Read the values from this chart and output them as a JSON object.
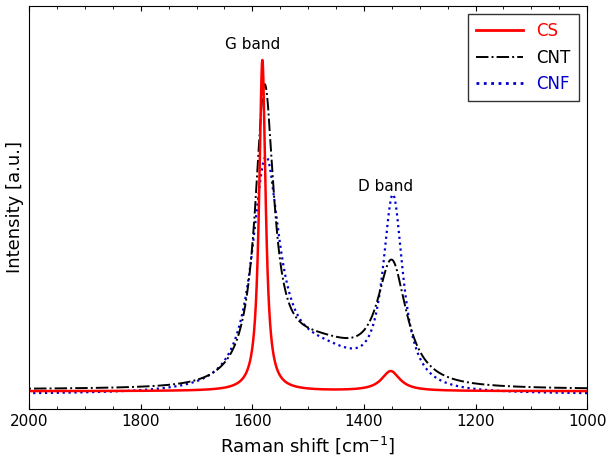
{
  "title": "",
  "xlabel": "Raman shift [cm$^{-1}$]",
  "ylabel": "Intensity [a.u.]",
  "xlim": [
    2000,
    1000
  ],
  "legend_labels": [
    "CS",
    "CNT",
    "CNF"
  ],
  "cs_color": "#ff0000",
  "cnt_color": "#000000",
  "cnf_color": "#0000cc",
  "g_band_label": "G band",
  "d_band_label": "D band",
  "background_color": "#ffffff",
  "figsize": [
    6.12,
    4.62
  ],
  "dpi": 100
}
